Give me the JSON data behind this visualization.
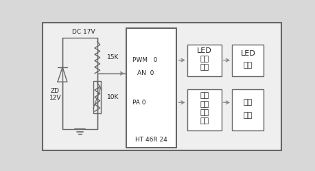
{
  "bg_color": "#d8d8d8",
  "inner_bg": "#efefef",
  "box_color": "#666666",
  "text_color": "#222222",
  "arrow_color": "#888888",
  "dc_label": "DC 17V",
  "zd_label": "ZD\n12V",
  "r1_label": "15K",
  "r2_label": "10K",
  "ic_label": "HT 46R 24",
  "an_label": "AN  0",
  "pwm_label": "PWM   0",
  "pa_label": "PA 0",
  "box1_line1": "LED",
  "box1_line2": "驅動",
  "box1_line3": "電路",
  "box2_line1": "LED",
  "box2_line2": "陣列",
  "box3_line1": "壓電",
  "box3_line2": "扇片",
  "box3_line3": "驅動",
  "box3_line4": "電路",
  "box4_line1": "壓電",
  "box4_line2": "扇片"
}
